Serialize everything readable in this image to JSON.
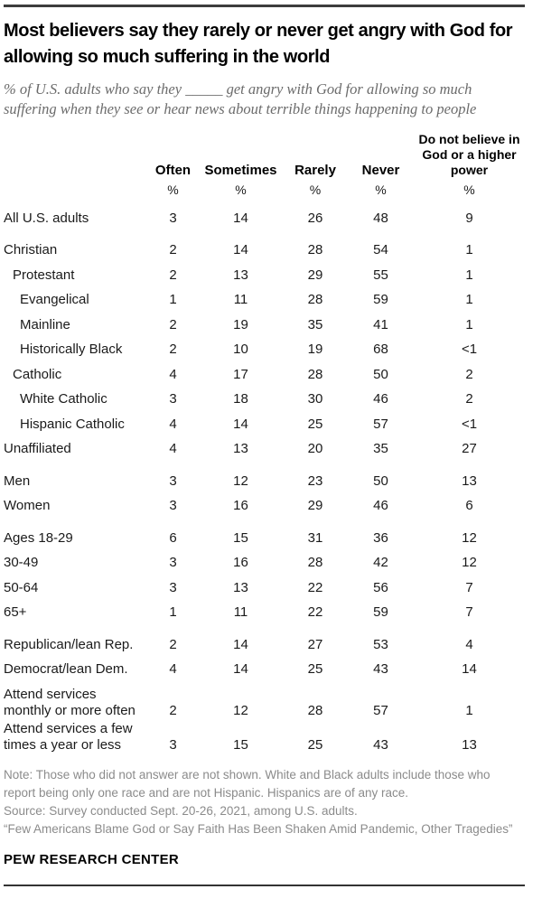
{
  "title": "Most believers say they rarely or never get angry with God for allowing so much suffering in the world",
  "subtitle": "% of U.S. adults who say they _____ get angry with God for allowing so much suffering when they see or hear news about terrible things happening to people",
  "colors": {
    "title_black": "#000000",
    "subtitle_gray": "#6b6b6b",
    "table_text": "#1a1a1a",
    "note_gray": "#8b8b8b",
    "rule_dark": "#3d3d3d"
  },
  "chart_data": {
    "type": "table",
    "columns": [
      "Often",
      "Sometimes",
      "Rarely",
      "Never",
      "Do not believe in\nGod or a higher\npower"
    ],
    "units": [
      "%",
      "%",
      "%",
      "%",
      "%"
    ],
    "rows": [
      {
        "label": "All U.S. adults",
        "indent": 0,
        "group_start": false,
        "values": [
          "3",
          "14",
          "26",
          "48",
          "9"
        ]
      },
      {
        "label": "Christian",
        "indent": 0,
        "group_start": true,
        "values": [
          "2",
          "14",
          "28",
          "54",
          "1"
        ]
      },
      {
        "label": "Protestant",
        "indent": 1,
        "group_start": false,
        "values": [
          "2",
          "13",
          "29",
          "55",
          "1"
        ]
      },
      {
        "label": "Evangelical",
        "indent": 2,
        "group_start": false,
        "values": [
          "1",
          "11",
          "28",
          "59",
          "1"
        ]
      },
      {
        "label": "Mainline",
        "indent": 2,
        "group_start": false,
        "values": [
          "2",
          "19",
          "35",
          "41",
          "1"
        ]
      },
      {
        "label": "Historically Black",
        "indent": 2,
        "group_start": false,
        "values": [
          "2",
          "10",
          "19",
          "68",
          "<1"
        ]
      },
      {
        "label": "Catholic",
        "indent": 1,
        "group_start": false,
        "values": [
          "4",
          "17",
          "28",
          "50",
          "2"
        ]
      },
      {
        "label": "White Catholic",
        "indent": 2,
        "group_start": false,
        "values": [
          "3",
          "18",
          "30",
          "46",
          "2"
        ]
      },
      {
        "label": "Hispanic Catholic",
        "indent": 2,
        "group_start": false,
        "values": [
          "4",
          "14",
          "25",
          "57",
          "<1"
        ]
      },
      {
        "label": "Unaffiliated",
        "indent": 0,
        "group_start": false,
        "values": [
          "4",
          "13",
          "20",
          "35",
          "27"
        ]
      },
      {
        "label": "Men",
        "indent": 0,
        "group_start": true,
        "values": [
          "3",
          "12",
          "23",
          "50",
          "13"
        ]
      },
      {
        "label": "Women",
        "indent": 0,
        "group_start": false,
        "values": [
          "3",
          "16",
          "29",
          "46",
          "6"
        ]
      },
      {
        "label": "Ages 18-29",
        "indent": 0,
        "group_start": true,
        "values": [
          "6",
          "15",
          "31",
          "36",
          "12"
        ]
      },
      {
        "label": "30-49",
        "indent": 0,
        "group_start": false,
        "values": [
          "3",
          "16",
          "28",
          "42",
          "12"
        ]
      },
      {
        "label": "50-64",
        "indent": 0,
        "group_start": false,
        "values": [
          "3",
          "13",
          "22",
          "56",
          "7"
        ]
      },
      {
        "label": "65+",
        "indent": 0,
        "group_start": false,
        "values": [
          "1",
          "11",
          "22",
          "59",
          "7"
        ]
      },
      {
        "label": "Republican/lean Rep.",
        "indent": 0,
        "group_start": true,
        "values": [
          "2",
          "14",
          "27",
          "53",
          "4"
        ]
      },
      {
        "label": "Democrat/lean Dem.",
        "indent": 0,
        "group_start": false,
        "values": [
          "4",
          "14",
          "25",
          "43",
          "14"
        ]
      },
      {
        "label": "Attend services\nmonthly or more often",
        "indent": 0,
        "group_start": true,
        "values": [
          "2",
          "12",
          "28",
          "57",
          "1"
        ]
      },
      {
        "label": "Attend services a few\ntimes a year or less",
        "indent": 0,
        "group_start": false,
        "values": [
          "3",
          "15",
          "25",
          "43",
          "13"
        ]
      }
    ]
  },
  "footer": {
    "note": "Note: Those who did not answer are not shown. White and Black adults include those who report being only one race and are not Hispanic. Hispanics are of any race.",
    "source": "Source: Survey conducted Sept. 20-26, 2021, among U.S. adults.",
    "report": "“Few Americans Blame God or Say Faith Has Been Shaken Amid Pandemic, Other Tragedies”",
    "brand": "PEW RESEARCH CENTER"
  }
}
